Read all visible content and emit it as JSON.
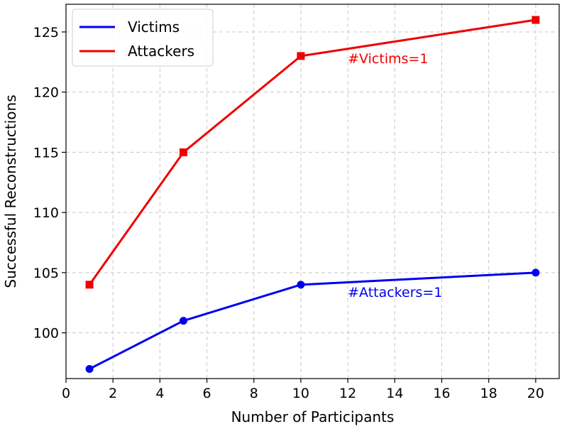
{
  "chart_data": {
    "type": "line",
    "xlabel": "Number of Participants",
    "ylabel": "Successful Reconstructions",
    "xlim": [
      0,
      21
    ],
    "ylim": [
      96.2,
      127.3
    ],
    "xticks": [
      0,
      2,
      4,
      6,
      8,
      10,
      12,
      14,
      16,
      18,
      20
    ],
    "yticks": [
      100,
      105,
      110,
      115,
      120,
      125
    ],
    "grid": true,
    "legend_placement": "top-left",
    "x": [
      1,
      5,
      10,
      20
    ],
    "series": [
      {
        "name": "Victims",
        "color": "#0000ee",
        "marker": "circle",
        "values": [
          97,
          101,
          104,
          105
        ]
      },
      {
        "name": "Attackers",
        "color": "#ee0000",
        "marker": "square",
        "values": [
          104,
          115,
          123,
          126
        ]
      }
    ],
    "annotations": [
      {
        "text": "#Victims=1",
        "x": 12,
        "y": 122.4,
        "color": "#ee0000"
      },
      {
        "text": "#Attackers=1",
        "x": 12,
        "y": 103.0,
        "color": "#0000ee"
      }
    ]
  }
}
